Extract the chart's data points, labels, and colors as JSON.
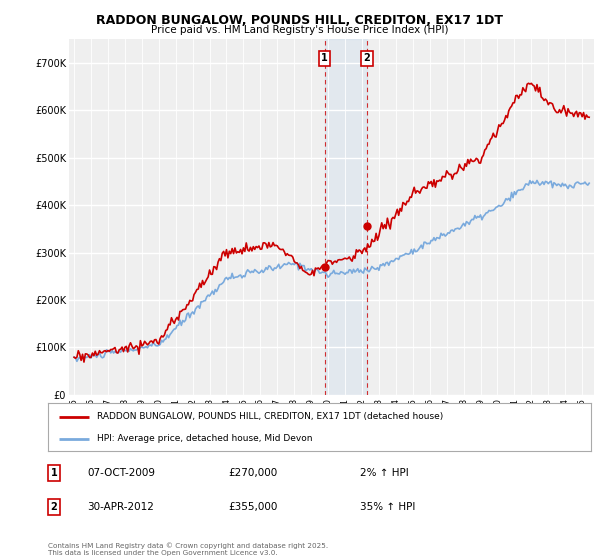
{
  "title": "RADDON BUNGALOW, POUNDS HILL, CREDITON, EX17 1DT",
  "subtitle": "Price paid vs. HM Land Registry's House Price Index (HPI)",
  "ylim": [
    0,
    750000
  ],
  "yticks": [
    0,
    100000,
    200000,
    300000,
    400000,
    500000,
    600000,
    700000
  ],
  "ytick_labels": [
    "£0",
    "£100K",
    "£200K",
    "£300K",
    "£400K",
    "£500K",
    "£600K",
    "£700K"
  ],
  "background_color": "#ffffff",
  "plot_bg_color": "#efefef",
  "grid_color": "#ffffff",
  "red_color": "#cc0000",
  "blue_color": "#7aaadd",
  "transaction1_date": "07-OCT-2009",
  "transaction1_price": 270000,
  "transaction1_pct": "2%",
  "transaction2_date": "30-APR-2012",
  "transaction2_price": 355000,
  "transaction2_pct": "35%",
  "legend_label_red": "RADDON BUNGALOW, POUNDS HILL, CREDITON, EX17 1DT (detached house)",
  "legend_label_blue": "HPI: Average price, detached house, Mid Devon",
  "footnote": "Contains HM Land Registry data © Crown copyright and database right 2025.\nThis data is licensed under the Open Government Licence v3.0.",
  "transaction1_year": 2009.79,
  "transaction2_year": 2012.29,
  "xmin": 1994.7,
  "xmax": 2025.7
}
